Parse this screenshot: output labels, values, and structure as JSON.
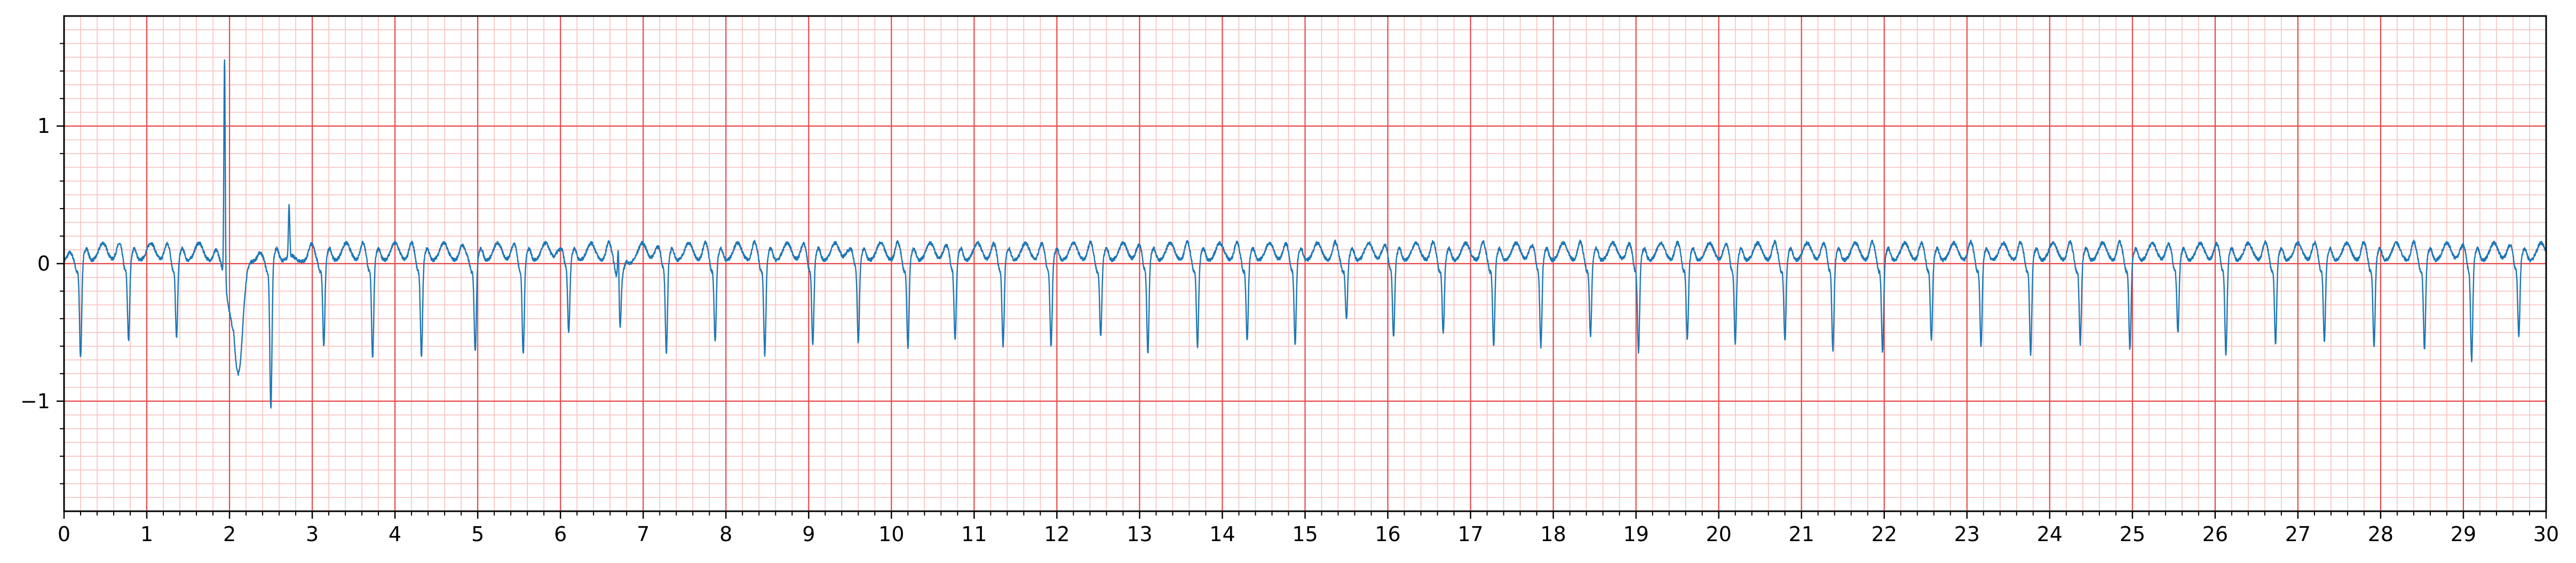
{
  "chart_data": {
    "type": "line",
    "title": "",
    "xlabel": "",
    "ylabel": "",
    "xlim": [
      0,
      30
    ],
    "ylim": [
      -1.8,
      1.8
    ],
    "x_ticks": [
      0,
      1,
      2,
      3,
      4,
      5,
      6,
      7,
      8,
      9,
      10,
      11,
      12,
      13,
      14,
      15,
      16,
      17,
      18,
      19,
      20,
      21,
      22,
      23,
      24,
      25,
      26,
      27,
      28,
      29,
      30
    ],
    "x_tick_labels": [
      "0",
      "1",
      "2",
      "3",
      "4",
      "5",
      "6",
      "7",
      "8",
      "9",
      "10",
      "11",
      "12",
      "13",
      "14",
      "15",
      "16",
      "17",
      "18",
      "19",
      "20",
      "21",
      "22",
      "23",
      "24",
      "25",
      "26",
      "27",
      "28",
      "29",
      "30"
    ],
    "y_ticks": [
      -1,
      0,
      1
    ],
    "y_tick_labels": [
      "−1",
      "0",
      "1"
    ],
    "grid": {
      "major_x_step": 1,
      "minor_x_step": 0.2,
      "major_y_step": 1,
      "minor_y_step": 0.1,
      "major_color": "#e8484a",
      "minor_color": "#f8c0c0"
    },
    "series": [
      {
        "name": "ECG",
        "color": "#1f77b4",
        "beat_times": [
          0.2,
          0.78,
          1.36,
          2.5,
          3.14,
          3.73,
          4.32,
          4.97,
          5.55,
          6.1,
          6.72,
          7.28,
          7.87,
          8.47,
          9.05,
          9.6,
          10.2,
          10.77,
          11.35,
          11.93,
          12.53,
          13.1,
          13.7,
          14.3,
          14.88,
          15.5,
          16.07,
          16.67,
          17.28,
          17.85,
          18.45,
          19.03,
          19.62,
          20.2,
          20.8,
          21.38,
          21.98,
          22.57,
          23.17,
          23.77,
          24.37,
          24.97,
          25.55,
          26.13,
          26.73,
          27.32,
          27.92,
          28.53,
          29.1,
          29.67
        ],
        "r_amplitudes": [
          -0.7,
          -0.58,
          -0.56,
          -1.07,
          -0.62,
          -0.7,
          -0.7,
          -0.66,
          -0.68,
          -0.52,
          -0.4,
          -0.67,
          -0.58,
          -0.68,
          -0.6,
          -0.6,
          -0.63,
          -0.57,
          -0.62,
          -0.62,
          -0.55,
          -0.67,
          -0.62,
          -0.58,
          -0.6,
          -0.42,
          -0.55,
          -0.52,
          -0.62,
          -0.62,
          -0.54,
          -0.66,
          -0.57,
          -0.6,
          -0.58,
          -0.65,
          -0.66,
          -0.58,
          -0.62,
          -0.68,
          -0.6,
          -0.64,
          -0.52,
          -0.68,
          -0.6,
          -0.58,
          -0.62,
          -0.64,
          -0.72,
          -0.54
        ],
        "artifacts": [
          {
            "t": 1.94,
            "peak": 1.62,
            "trough": -0.3
          },
          {
            "t": 2.05,
            "peak": 0.05,
            "trough": -0.79
          },
          {
            "t": 2.72,
            "peak": 0.38,
            "trough": -0.1
          },
          {
            "t": 6.7,
            "peak": 0.28,
            "trough": -0.12
          }
        ]
      }
    ]
  }
}
